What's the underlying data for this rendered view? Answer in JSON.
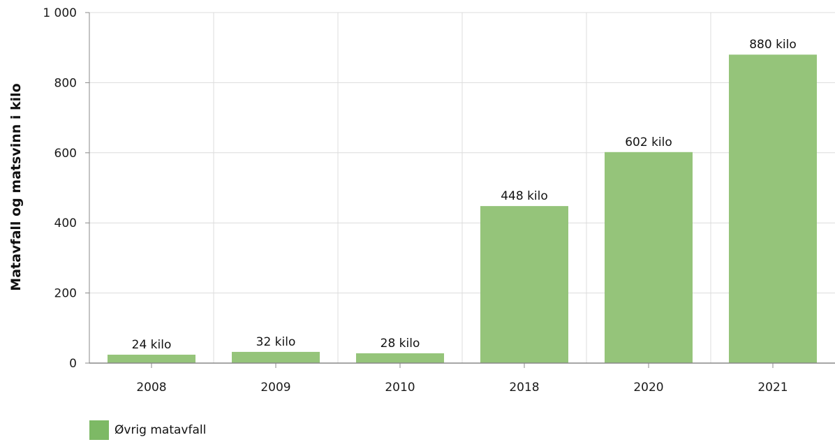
{
  "chart_data": {
    "type": "bar",
    "categories": [
      "2008",
      "2009",
      "2010",
      "2018",
      "2020",
      "2021"
    ],
    "series": [
      {
        "name": "Øvrig matavfall",
        "values": [
          24,
          32,
          28,
          448,
          602,
          880
        ],
        "data_labels": [
          "24 kilo",
          "32 kilo",
          "28 kilo",
          "448 kilo",
          "602 kilo",
          "880 kilo"
        ]
      }
    ],
    "title": "",
    "xlabel": "",
    "ylabel": "Matavfall og matsvinn i kilo",
    "ylim": [
      0,
      1000
    ],
    "yticks": [
      0,
      200,
      400,
      600,
      800,
      1000
    ],
    "ytick_labels": [
      "0",
      "200",
      "400",
      "600",
      "800",
      "1 000"
    ],
    "grid": true,
    "legend_position": "bottom-left"
  },
  "colors": {
    "bar": "#95c47a",
    "legend_swatch": "#7db965",
    "grid": "#dcdcdc",
    "axis": "#888888"
  }
}
